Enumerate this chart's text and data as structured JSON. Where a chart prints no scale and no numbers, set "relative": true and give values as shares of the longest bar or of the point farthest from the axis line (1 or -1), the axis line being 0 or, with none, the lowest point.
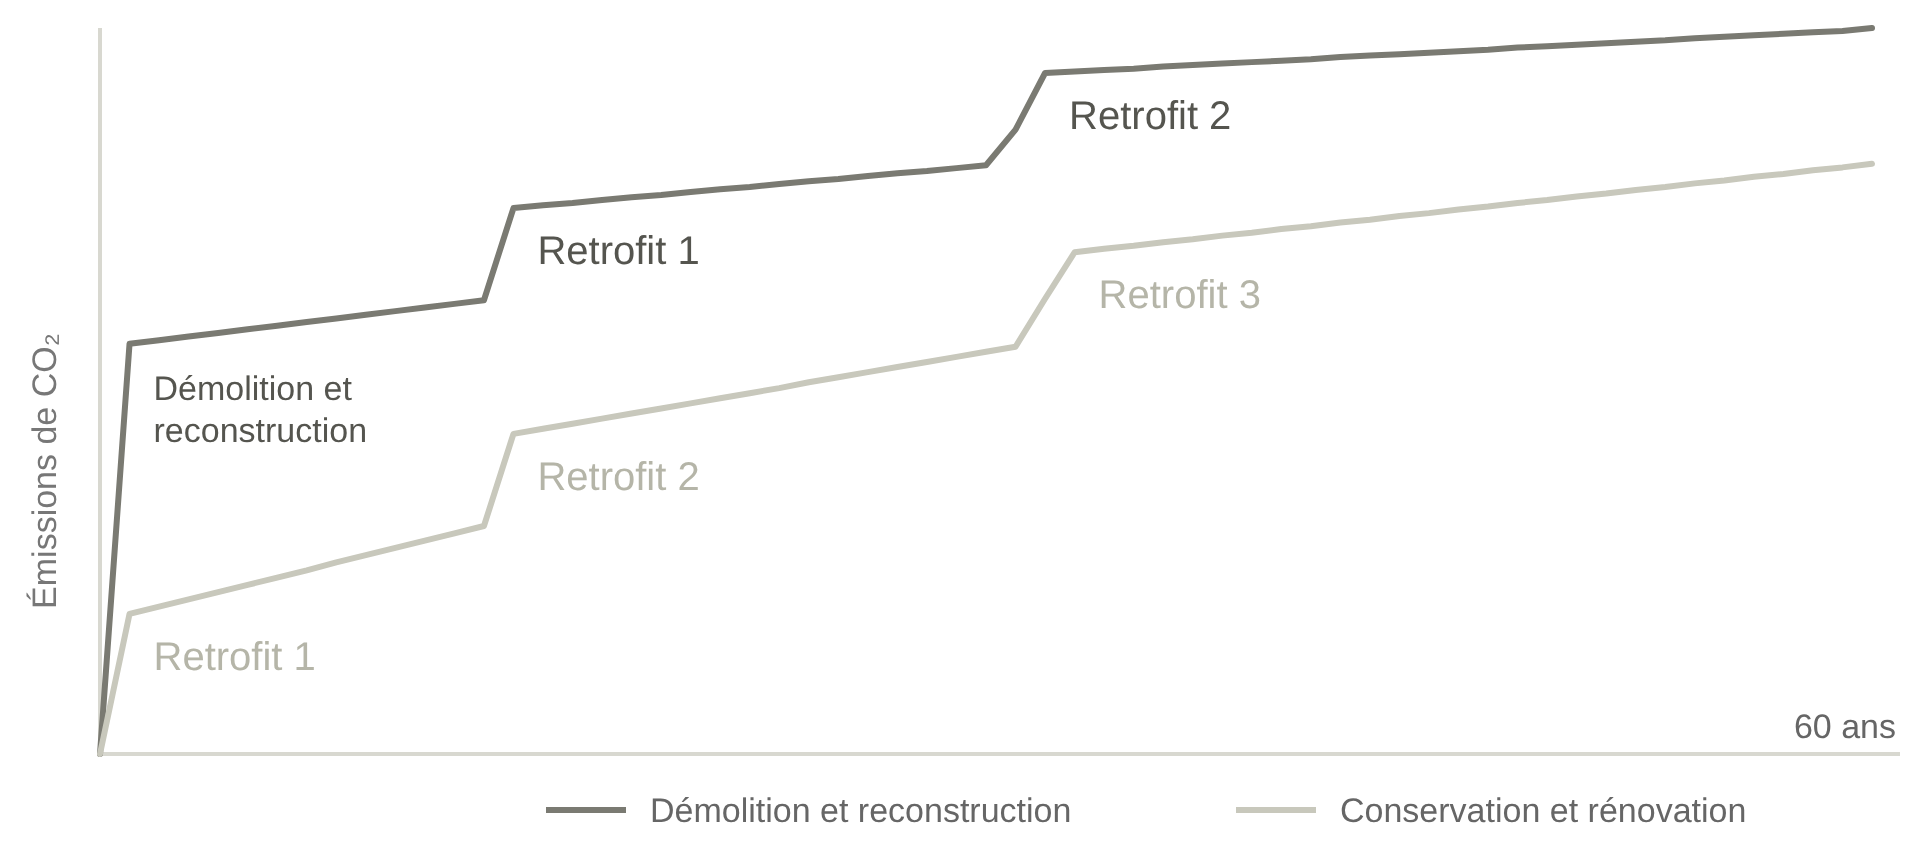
{
  "chart_data": {
    "type": "line",
    "relative": true,
    "ylabel": "Émissions de CO₂",
    "legend": "bottom",
    "marker": "none",
    "line_style": "solid",
    "categories": [
      null,
      null,
      null,
      null,
      null,
      null,
      null,
      null,
      null,
      null,
      null,
      null,
      null,
      null,
      null,
      null,
      null,
      null,
      null,
      null,
      null,
      null,
      null,
      null,
      null,
      null,
      null,
      null,
      null,
      null,
      null,
      null,
      null,
      null,
      null,
      null,
      null,
      null,
      null,
      null,
      null,
      null,
      null,
      null,
      null,
      null,
      null,
      null,
      null,
      null,
      null,
      null,
      null,
      null,
      null,
      null,
      null,
      null,
      null,
      null,
      null
    ],
    "series": [
      {
        "name": "Démolition et reconstruction",
        "color": "#7a7a72",
        "values": [
          0,
          0.565,
          0.57,
          0.575,
          0.58,
          0.585,
          0.59,
          0.595,
          0.6,
          0.605,
          0.61,
          0.615,
          0.62,
          0.625,
          0.752,
          0.756,
          0.759,
          0.763,
          0.767,
          0.77,
          0.774,
          0.778,
          0.781,
          0.785,
          0.789,
          0.792,
          0.796,
          0.8,
          0.803,
          0.807,
          0.811,
          0.86,
          0.938,
          0.94,
          0.942,
          0.944,
          0.947,
          0.949,
          0.951,
          0.953,
          0.955,
          0.957,
          0.96,
          0.962,
          0.964,
          0.966,
          0.968,
          0.97,
          0.973,
          0.975,
          0.977,
          0.979,
          0.981,
          0.983,
          0.986,
          0.988,
          0.99,
          0.992,
          0.994,
          0.996,
          1
        ]
      },
      {
        "name": "Conservation et rénovation",
        "color": "#c8c8bc",
        "values": [
          0,
          0.193,
          0.203,
          0.213,
          0.223,
          0.233,
          0.243,
          0.253,
          0.264,
          0.274,
          0.284,
          0.294,
          0.304,
          0.314,
          0.441,
          0.448,
          0.455,
          0.462,
          0.469,
          0.476,
          0.483,
          0.49,
          0.497,
          0.504,
          0.512,
          0.519,
          0.526,
          0.533,
          0.54,
          0.547,
          0.554,
          0.561,
          0.627,
          0.691,
          0.696,
          0.7,
          0.705,
          0.709,
          0.714,
          0.718,
          0.723,
          0.727,
          0.732,
          0.736,
          0.741,
          0.745,
          0.75,
          0.754,
          0.759,
          0.763,
          0.768,
          0.772,
          0.777,
          0.781,
          0.786,
          0.79,
          0.795,
          0.799,
          0.804,
          0.808,
          0.813
        ]
      }
    ],
    "annotations": [
      "Démolition et reconstruction",
      "Retrofit 1",
      "Retrofit 2",
      "Retrofit 1",
      "Retrofit 2",
      "Retrofit 3",
      "60 ans"
    ]
  }
}
